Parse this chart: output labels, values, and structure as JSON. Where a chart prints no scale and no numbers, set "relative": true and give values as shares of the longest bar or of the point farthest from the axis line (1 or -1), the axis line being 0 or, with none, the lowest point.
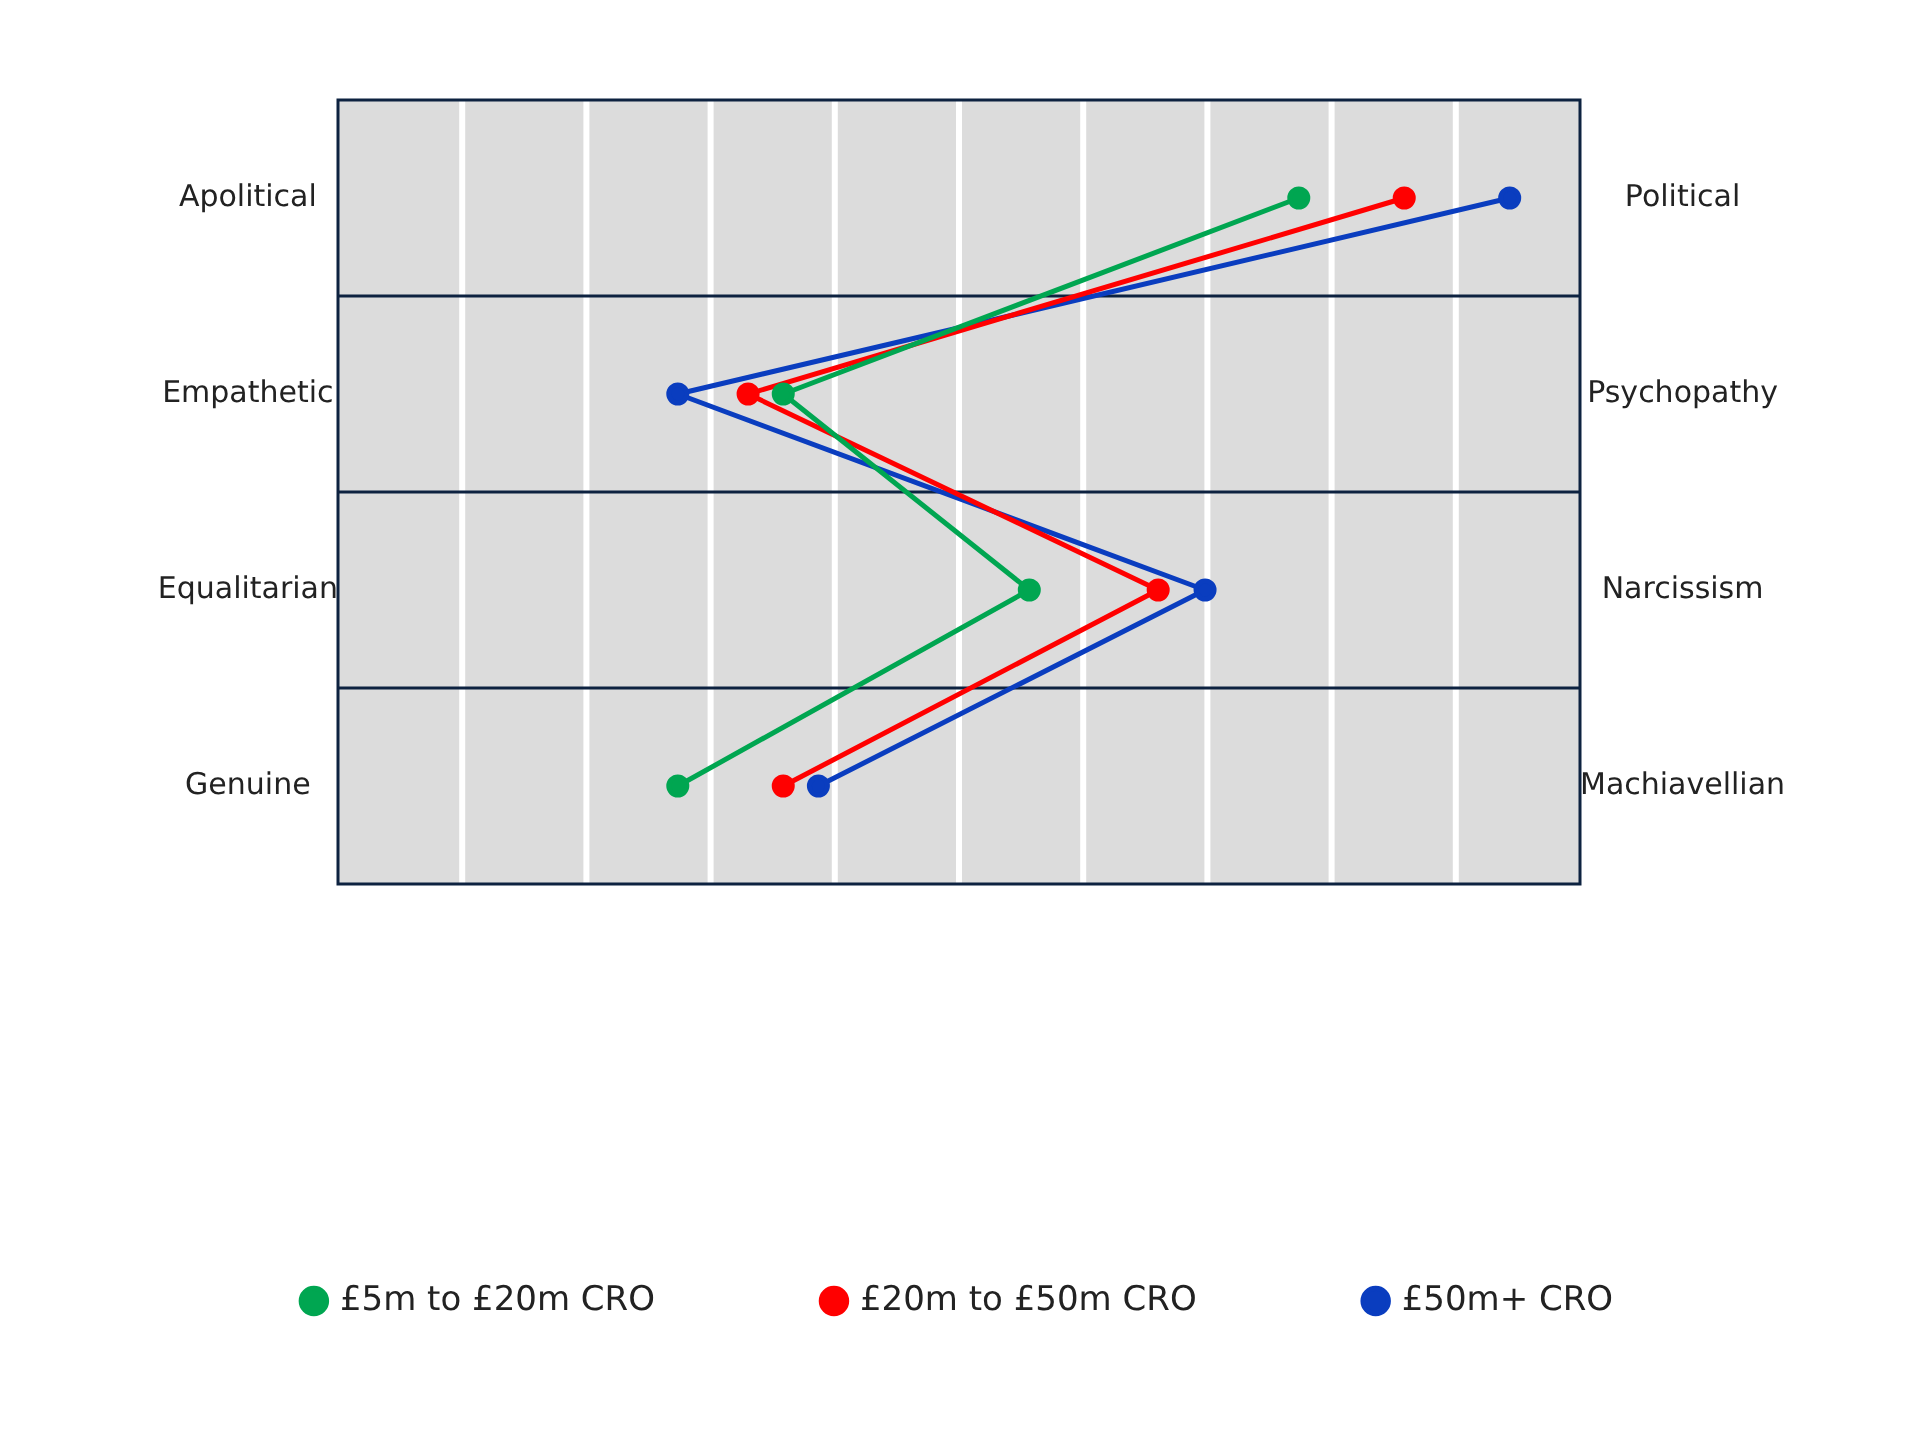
{
  "chart_data": {
    "type": "line",
    "orientation": "horizontal",
    "relative": true,
    "categories": [
      "Apolitical",
      "Empathetic",
      "Equalitarian",
      "Genuine"
    ],
    "y2_categories": [
      "Political",
      "Psychopathy",
      "Narcissism",
      "Machiavellian"
    ],
    "grid": true,
    "legend": "bottom",
    "marker": "circle",
    "series": [
      {
        "name": "£5m to £20m CRO",
        "color": "#00a651",
        "values": [
          0.82,
          0.38,
          0.59,
          0.29
        ]
      },
      {
        "name": "£20m to £50m CRO",
        "color": "#ff0000",
        "values": [
          0.91,
          0.35,
          0.7,
          0.38
        ]
      },
      {
        "name": "£50m+ CRO",
        "color": "#0a3dbf",
        "values": [
          1,
          0.29,
          0.74,
          0.41
        ]
      }
    ]
  }
}
